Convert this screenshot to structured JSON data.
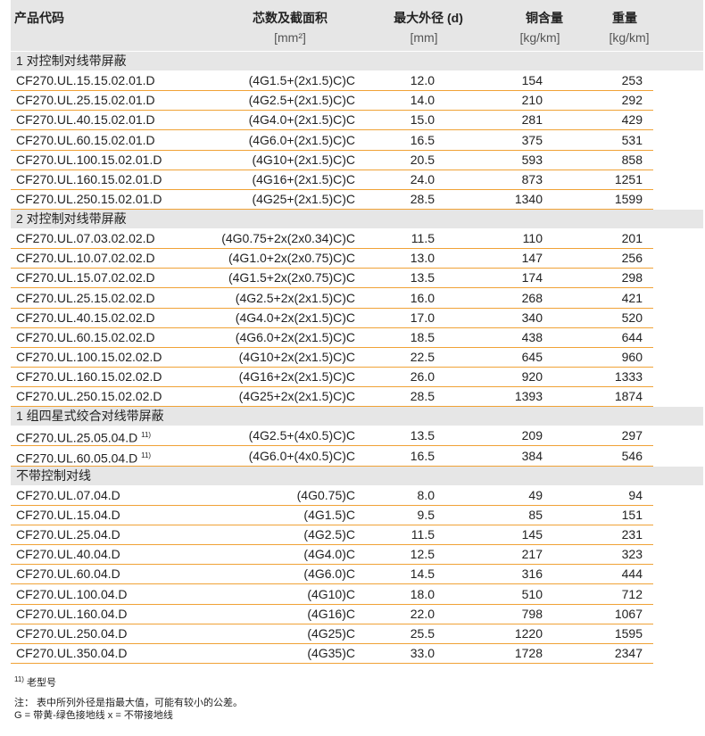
{
  "header": {
    "product": "产品代码",
    "cores": "芯数及截面积",
    "cores_unit": "[mm²]",
    "diameter": "最大外径 (d)",
    "diameter_unit": "[mm]",
    "copper": "铜含量",
    "copper_unit": "[kg/km]",
    "weight": "重量",
    "weight_unit": "[kg/km]"
  },
  "sections": [
    {
      "title": "1 对控制对线带屏蔽",
      "rows": [
        {
          "code": "CF270.UL.15.15.02.01.D",
          "cores": "(4G1.5+(2x1.5)C)C",
          "diameter": "12.0",
          "copper": "154",
          "weight": "253"
        },
        {
          "code": "CF270.UL.25.15.02.01.D",
          "cores": "(4G2.5+(2x1.5)C)C",
          "diameter": "14.0",
          "copper": "210",
          "weight": "292"
        },
        {
          "code": "CF270.UL.40.15.02.01.D",
          "cores": "(4G4.0+(2x1.5)C)C",
          "diameter": "15.0",
          "copper": "281",
          "weight": "429"
        },
        {
          "code": "CF270.UL.60.15.02.01.D",
          "cores": "(4G6.0+(2x1.5)C)C",
          "diameter": "16.5",
          "copper": "375",
          "weight": "531"
        },
        {
          "code": "CF270.UL.100.15.02.01.D",
          "cores": "(4G10+(2x1.5)C)C",
          "diameter": "20.5",
          "copper": "593",
          "weight": "858"
        },
        {
          "code": "CF270.UL.160.15.02.01.D",
          "cores": "(4G16+(2x1.5)C)C",
          "diameter": "24.0",
          "copper": "873",
          "weight": "1251"
        },
        {
          "code": "CF270.UL.250.15.02.01.D",
          "cores": "(4G25+(2x1.5)C)C",
          "diameter": "28.5",
          "copper": "1340",
          "weight": "1599"
        }
      ]
    },
    {
      "title": "2 对控制对线带屏蔽",
      "rows": [
        {
          "code": "CF270.UL.07.03.02.02.D",
          "cores": "(4G0.75+2x(2x0.34)C)C",
          "diameter": "11.5",
          "copper": "110",
          "weight": "201"
        },
        {
          "code": "CF270.UL.10.07.02.02.D",
          "cores": "(4G1.0+2x(2x0.75)C)C",
          "diameter": "13.0",
          "copper": "147",
          "weight": "256"
        },
        {
          "code": "CF270.UL.15.07.02.02.D",
          "cores": "(4G1.5+2x(2x0.75)C)C",
          "diameter": "13.5",
          "copper": "174",
          "weight": "298"
        },
        {
          "code": "CF270.UL.25.15.02.02.D",
          "cores": "(4G2.5+2x(2x1.5)C)C",
          "diameter": "16.0",
          "copper": "268",
          "weight": "421"
        },
        {
          "code": "CF270.UL.40.15.02.02.D",
          "cores": "(4G4.0+2x(2x1.5)C)C",
          "diameter": "17.0",
          "copper": "340",
          "weight": "520"
        },
        {
          "code": "CF270.UL.60.15.02.02.D",
          "cores": "(4G6.0+2x(2x1.5)C)C",
          "diameter": "18.5",
          "copper": "438",
          "weight": "644"
        },
        {
          "code": "CF270.UL.100.15.02.02.D",
          "cores": "(4G10+2x(2x1.5)C)C",
          "diameter": "22.5",
          "copper": "645",
          "weight": "960"
        },
        {
          "code": "CF270.UL.160.15.02.02.D",
          "cores": "(4G16+2x(2x1.5)C)C",
          "diameter": "26.0",
          "copper": "920",
          "weight": "1333"
        },
        {
          "code": "CF270.UL.250.15.02.02.D",
          "cores": "(4G25+2x(2x1.5)C)C",
          "diameter": "28.5",
          "copper": "1393",
          "weight": "1874"
        }
      ]
    },
    {
      "title": "1 组四星式绞合对线带屏蔽",
      "rows": [
        {
          "code": "CF270.UL.25.05.04.D",
          "note": "11)",
          "cores": "(4G2.5+(4x0.5)C)C",
          "diameter": "13.5",
          "copper": "209",
          "weight": "297"
        },
        {
          "code": "CF270.UL.60.05.04.D",
          "note": "11)",
          "cores": "(4G6.0+(4x0.5)C)C",
          "diameter": "16.5",
          "copper": "384",
          "weight": "546"
        }
      ]
    },
    {
      "title": "不带控制对线",
      "rows": [
        {
          "code": "CF270.UL.07.04.D",
          "cores": "(4G0.75)C",
          "diameter": "8.0",
          "copper": "49",
          "weight": "94"
        },
        {
          "code": "CF270.UL.15.04.D",
          "cores": "(4G1.5)C",
          "diameter": "9.5",
          "copper": "85",
          "weight": "151"
        },
        {
          "code": "CF270.UL.25.04.D",
          "cores": "(4G2.5)C",
          "diameter": "11.5",
          "copper": "145",
          "weight": "231"
        },
        {
          "code": "CF270.UL.40.04.D",
          "cores": "(4G4.0)C",
          "diameter": "12.5",
          "copper": "217",
          "weight": "323"
        },
        {
          "code": "CF270.UL.60.04.D",
          "cores": "(4G6.0)C",
          "diameter": "14.5",
          "copper": "316",
          "weight": "444"
        },
        {
          "code": "CF270.UL.100.04.D",
          "cores": "(4G10)C",
          "diameter": "18.0",
          "copper": "510",
          "weight": "712"
        },
        {
          "code": "CF270.UL.160.04.D",
          "cores": "(4G16)C",
          "diameter": "22.0",
          "copper": "798",
          "weight": "1067"
        },
        {
          "code": "CF270.UL.250.04.D",
          "cores": "(4G25)C",
          "diameter": "25.5",
          "copper": "1220",
          "weight": "1595"
        },
        {
          "code": "CF270.UL.350.04.D",
          "cores": "(4G35)C",
          "diameter": "33.0",
          "copper": "1728",
          "weight": "2347"
        }
      ]
    }
  ],
  "footer": {
    "note_mark": "11)",
    "note_text": "老型号",
    "remark": "注：  表中所列外径是指最大值，可能有较小的公差。",
    "legend": "G = 带黄-绿色接地线  x = 不带接地线"
  }
}
